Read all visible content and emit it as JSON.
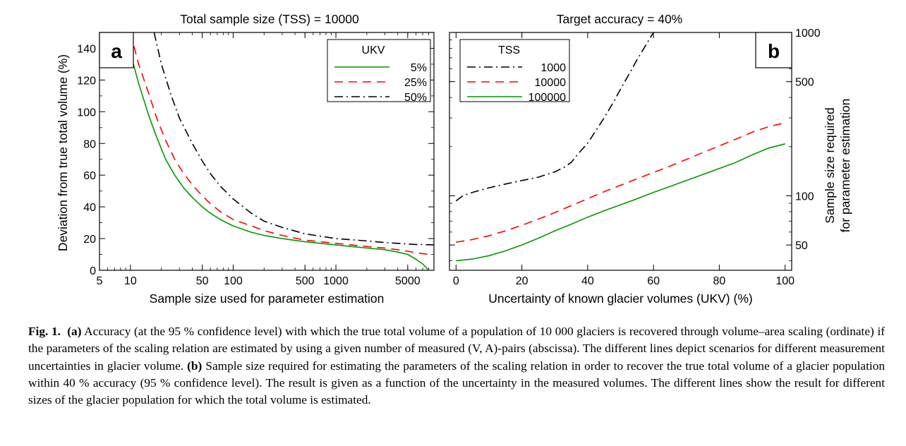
{
  "chart_data": [
    {
      "id": "a",
      "type": "line",
      "panel_label": "a",
      "title": "Total sample size (TSS) = 10000",
      "xlabel": "Sample size used for parameter estimation",
      "ylabel": "Deviation from true total volume (%)",
      "x_scale": "log",
      "xlim": [
        5,
        9000
      ],
      "ylim": [
        0,
        150
      ],
      "x_ticks": [
        5,
        10,
        50,
        100,
        500,
        1000,
        5000
      ],
      "x_tick_labels": [
        "5",
        "10",
        "50",
        "100",
        "500",
        "1000",
        "5000"
      ],
      "y_ticks": [
        0,
        20,
        40,
        60,
        80,
        100,
        120,
        140
      ],
      "y_tick_labels": [
        "0",
        "20",
        "40",
        "60",
        "80",
        "100",
        "120",
        "140"
      ],
      "legend_title": "UKV",
      "legend_position": "top-right",
      "series": [
        {
          "name": "5%",
          "color": "#009900",
          "dash": "solid",
          "x": [
            10,
            12,
            15,
            18,
            22,
            27,
            33,
            40,
            50,
            60,
            75,
            100,
            150,
            200,
            300,
            500,
            1000,
            2000,
            3000,
            4000,
            5000,
            6000,
            7000,
            8000
          ],
          "y": [
            137,
            118,
            98,
            84,
            70,
            60,
            52,
            46,
            40,
            36,
            32,
            28,
            24,
            22,
            20,
            18,
            16,
            14,
            13,
            11.5,
            10,
            7,
            4,
            0
          ]
        },
        {
          "name": "25%",
          "color": "#ff0000",
          "dash": "12,8",
          "x": [
            10,
            12,
            15,
            18,
            22,
            27,
            33,
            40,
            50,
            60,
            75,
            100,
            150,
            200,
            300,
            500,
            1000,
            2000,
            3000,
            4000,
            5000,
            6000,
            7000,
            8000
          ],
          "y": [
            150,
            130,
            112,
            96,
            82,
            70,
            61,
            54,
            47,
            42,
            37,
            32,
            28,
            25,
            22,
            19,
            17,
            15,
            14,
            13,
            12,
            11,
            10.5,
            10
          ]
        },
        {
          "name": "50%",
          "color": "#000000",
          "dash": "12,5,2,5",
          "x": [
            17,
            20,
            25,
            30,
            40,
            50,
            60,
            75,
            100,
            150,
            200,
            300,
            500,
            1000,
            2000,
            3000,
            4000,
            5000,
            6000,
            7000,
            8000,
            9000
          ],
          "y": [
            150,
            130,
            110,
            96,
            80,
            69,
            61,
            53,
            45,
            36,
            31,
            27,
            23,
            20,
            18.5,
            17.5,
            17,
            16.5,
            16.3,
            16.2,
            16.1,
            16
          ]
        }
      ]
    },
    {
      "id": "b",
      "type": "line",
      "panel_label": "b",
      "title": "Target accuracy = 40%",
      "xlabel": "Uncertainty of known glacier volumes (UKV) (%)",
      "ylabel": [
        "Sample size required",
        "for parameter estimation"
      ],
      "y_scale": "log",
      "xlim": [
        -2,
        102
      ],
      "ylim": [
        35,
        1000
      ],
      "x_ticks": [
        0,
        20,
        40,
        60,
        80,
        100
      ],
      "x_tick_labels": [
        "0",
        "20",
        "40",
        "60",
        "80",
        "100"
      ],
      "y_ticks": [
        50,
        100,
        500,
        1000
      ],
      "y_tick_labels": [
        "50",
        "100",
        "500",
        "1000"
      ],
      "legend_title": "TSS",
      "legend_position": "top-left",
      "series": [
        {
          "name": "1000",
          "color": "#000000",
          "dash": "12,5,2,5",
          "x": [
            0,
            2,
            5,
            10,
            15,
            20,
            25,
            30,
            33,
            35,
            37,
            40,
            43,
            45,
            48,
            50,
            55,
            60
          ],
          "y": [
            93,
            100,
            105,
            112,
            118,
            124,
            130,
            140,
            150,
            160,
            180,
            210,
            260,
            300,
            380,
            450,
            680,
            1000
          ]
        },
        {
          "name": "10000",
          "color": "#ff0000",
          "dash": "12,8",
          "x": [
            0,
            5,
            10,
            15,
            20,
            25,
            30,
            35,
            40,
            45,
            50,
            55,
            60,
            65,
            70,
            75,
            80,
            85,
            90,
            95,
            100
          ],
          "y": [
            52,
            54,
            57,
            61,
            66,
            72,
            79,
            87,
            96,
            106,
            116,
            127,
            139,
            152,
            167,
            184,
            202,
            222,
            245,
            265,
            280
          ]
        },
        {
          "name": "100000",
          "color": "#009900",
          "dash": "solid",
          "x": [
            0,
            5,
            10,
            15,
            20,
            25,
            30,
            35,
            40,
            45,
            50,
            55,
            60,
            65,
            70,
            75,
            80,
            85,
            90,
            95,
            100
          ],
          "y": [
            40,
            41,
            43,
            46,
            50,
            55,
            61,
            67,
            74,
            81,
            88,
            96,
            105,
            114,
            124,
            135,
            147,
            160,
            178,
            196,
            208
          ]
        }
      ]
    }
  ],
  "caption": {
    "fig_label": "Fig. 1.",
    "part_a_label": "(a)",
    "part_a_text": " Accuracy (at the 95 % confidence level) with which the true total volume of a population of 10 000 glaciers is recovered through volume–area scaling (ordinate) if the parameters of the scaling relation are estimated by using a given number of measured (V, A)-pairs (abscissa). The different lines depict scenarios for different measurement uncertainties in glacier volume. ",
    "part_b_label": "(b)",
    "part_b_text": " Sample size required for estimating the parameters of the scaling relation in order to recover the true total volume of a glacier population within 40 % accuracy (95 % confidence level). The result is given as a function of the uncertainty in the measured volumes. The different lines show the result for different sizes of the glacier population for which the total volume is estimated."
  }
}
